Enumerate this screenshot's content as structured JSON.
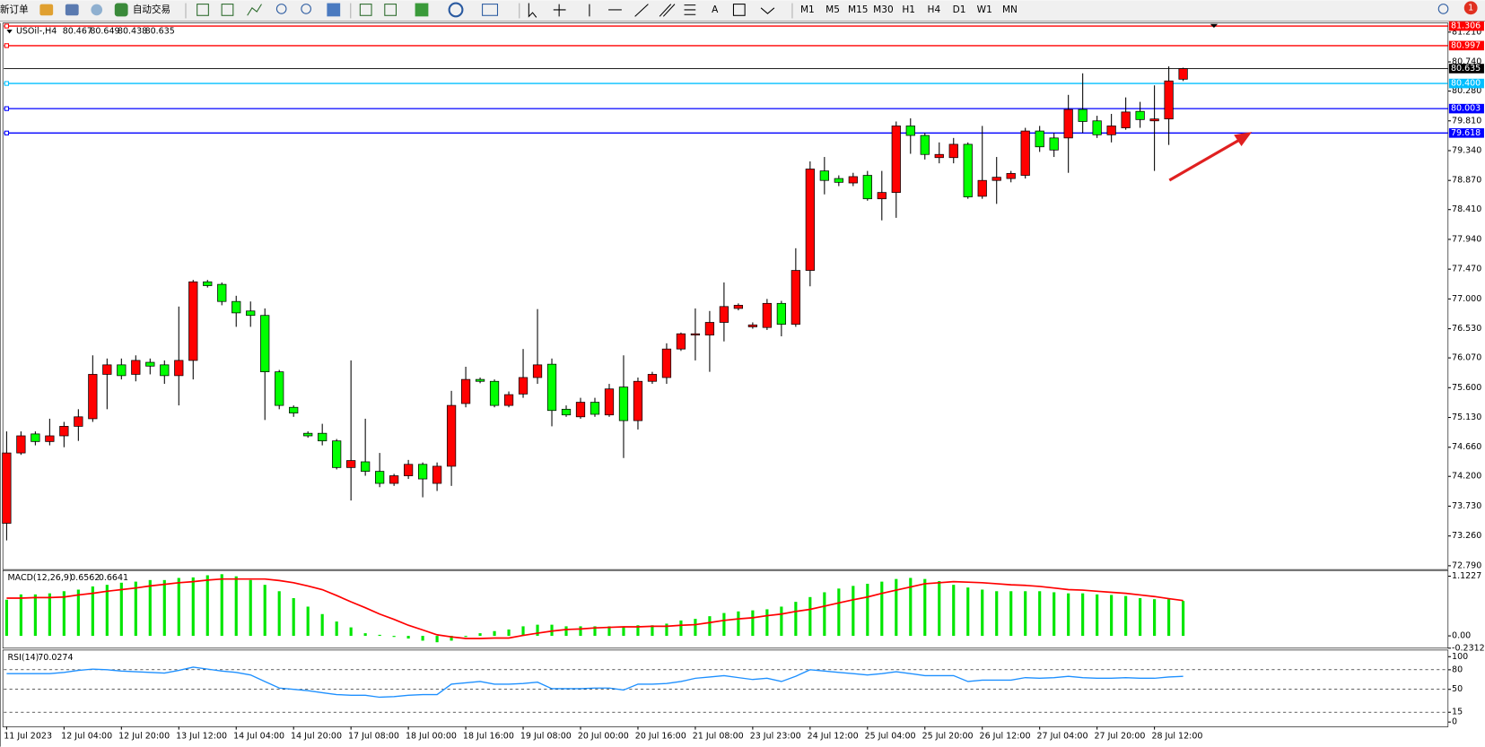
{
  "toolbar": {
    "new_order": "新订单",
    "auto_trading": "自动交易",
    "timeframes": [
      "M1",
      "M5",
      "M15",
      "M30",
      "H1",
      "H4",
      "D1",
      "W1",
      "MN"
    ],
    "badge": "1"
  },
  "chart_data": [
    {
      "type": "candlestick",
      "title": "USOil-,H4",
      "categories": [
        "11 Jul 2023",
        null,
        null,
        null,
        "12 Jul 04:00",
        null,
        null,
        null,
        "12 Jul 20:00",
        null,
        null,
        null,
        "13 Jul 12:00",
        null,
        null,
        null,
        "14 Jul 04:00",
        null,
        null,
        null,
        "14 Jul 20:00",
        null,
        null,
        null,
        "17 Jul 08:00",
        null,
        null,
        null,
        "18 Jul 00:00",
        null,
        null,
        null,
        "18 Jul 16:00",
        null,
        null,
        null,
        "19 Jul 08:00",
        null,
        null,
        null,
        "20 Jul 00:00",
        null,
        null,
        null,
        "20 Jul 16:00",
        null,
        null,
        null,
        "21 Jul 08:00",
        null,
        null,
        null,
        "23 Jul 23:00",
        null,
        null,
        null,
        "24 Jul 12:00",
        null,
        null,
        null,
        "25 Jul 04:00",
        null,
        null,
        null,
        "25 Jul 20:00",
        null,
        null,
        null,
        "26 Jul 12:00",
        null,
        null,
        null,
        "27 Jul 04:00",
        null,
        null,
        null,
        "27 Jul 20:00",
        null,
        null,
        null,
        "28 Jul 12:00",
        null,
        null
      ],
      "open": [
        73.46,
        74.57,
        74.87,
        74.75,
        74.84,
        74.99,
        75.11,
        75.81,
        75.96,
        75.81,
        76.0,
        75.96,
        75.79,
        76.03,
        77.27,
        77.23,
        76.96,
        76.81,
        76.74,
        75.85,
        75.29,
        74.88,
        74.88,
        74.76,
        74.34,
        74.43,
        74.28,
        74.09,
        74.21,
        74.39,
        74.09,
        74.36,
        75.35,
        75.73,
        75.7,
        75.32,
        75.5,
        75.76,
        75.97,
        75.26,
        75.14,
        75.37,
        75.17,
        75.61,
        75.08,
        75.7,
        75.76,
        76.21,
        76.43,
        76.43,
        76.63,
        76.85,
        76.56,
        76.55,
        76.93,
        76.6,
        77.45,
        79.02,
        78.9,
        78.83,
        78.95,
        78.58,
        78.68,
        79.73,
        79.58,
        79.23,
        79.23,
        79.44,
        78.62,
        78.87,
        78.9,
        78.95,
        79.65,
        79.54,
        79.54,
        79.99,
        79.81,
        79.59,
        79.7,
        79.96,
        79.81,
        79.84,
        80.467
      ],
      "high": [
        74.91,
        74.91,
        74.91,
        75.11,
        75.06,
        75.26,
        76.11,
        76.06,
        76.06,
        76.11,
        76.06,
        76.03,
        76.88,
        77.3,
        77.3,
        77.26,
        77.05,
        76.96,
        76.85,
        75.88,
        75.32,
        74.91,
        75.03,
        74.79,
        76.03,
        75.11,
        74.57,
        74.24,
        74.46,
        74.42,
        74.42,
        75.55,
        75.93,
        75.76,
        75.73,
        75.54,
        76.21,
        76.84,
        76.06,
        75.32,
        75.44,
        75.44,
        75.66,
        76.11,
        75.76,
        75.85,
        76.3,
        76.47,
        76.85,
        76.81,
        77.26,
        76.93,
        76.63,
        77.0,
        76.97,
        77.8,
        79.17,
        79.24,
        78.95,
        78.99,
        79.02,
        79.02,
        79.8,
        79.85,
        79.62,
        79.47,
        79.54,
        79.47,
        79.73,
        79.24,
        79.02,
        79.7,
        79.73,
        79.62,
        80.22,
        80.56,
        79.89,
        79.92,
        80.18,
        80.11,
        80.37,
        80.67,
        80.649
      ],
      "low": [
        73.19,
        74.54,
        74.69,
        74.69,
        74.66,
        74.76,
        75.06,
        75.26,
        75.73,
        75.7,
        75.81,
        75.66,
        75.32,
        75.73,
        77.18,
        76.9,
        76.56,
        76.56,
        75.09,
        75.26,
        75.14,
        74.81,
        74.69,
        74.31,
        73.82,
        74.21,
        74.03,
        74.05,
        74.16,
        73.87,
        73.97,
        74.05,
        75.29,
        75.67,
        75.29,
        75.29,
        75.44,
        75.66,
        74.99,
        75.14,
        75.11,
        75.14,
        75.14,
        74.49,
        74.94,
        75.66,
        75.66,
        76.18,
        76.03,
        75.85,
        76.33,
        76.82,
        76.53,
        76.51,
        76.41,
        76.56,
        77.2,
        78.65,
        78.78,
        78.78,
        78.55,
        78.24,
        78.28,
        79.29,
        79.2,
        79.14,
        79.14,
        78.58,
        78.58,
        78.5,
        78.84,
        78.9,
        79.32,
        79.24,
        78.99,
        79.62,
        79.54,
        79.47,
        79.67,
        79.7,
        79.02,
        79.43,
        80.438
      ],
      "close": [
        74.57,
        74.84,
        74.75,
        74.84,
        74.99,
        75.14,
        75.81,
        75.96,
        75.79,
        76.03,
        75.94,
        75.79,
        76.03,
        77.27,
        77.21,
        76.96,
        76.78,
        76.74,
        75.85,
        75.32,
        75.2,
        74.84,
        74.76,
        74.34,
        74.45,
        74.28,
        74.09,
        74.21,
        74.39,
        74.16,
        74.36,
        75.32,
        75.73,
        75.7,
        75.32,
        75.49,
        75.76,
        75.96,
        75.24,
        75.17,
        75.37,
        75.18,
        75.58,
        75.08,
        75.7,
        75.81,
        76.21,
        76.45,
        76.45,
        76.63,
        76.88,
        76.9,
        76.59,
        76.93,
        76.6,
        77.45,
        79.05,
        78.87,
        78.84,
        78.93,
        78.58,
        78.68,
        79.73,
        79.58,
        79.28,
        79.28,
        79.44,
        78.61,
        78.87,
        78.92,
        78.98,
        79.65,
        79.4,
        79.35,
        79.99,
        79.8,
        79.59,
        79.73,
        79.95,
        79.83,
        79.84,
        80.44,
        80.635
      ],
      "up_color": "#ff0000",
      "down_color": "#00ff00",
      "ylim": [
        72.745,
        81.338
      ],
      "yticks": [
        {
          "value": 81.21,
          "label": "81.210"
        },
        {
          "value": 80.74,
          "label": "80.740"
        },
        {
          "value": 80.28,
          "label": "80.280"
        },
        {
          "value": 79.81,
          "label": "79.810"
        },
        {
          "value": 79.34,
          "label": "79.340"
        },
        {
          "value": 78.87,
          "label": "78.870"
        },
        {
          "value": 78.41,
          "label": "78.410"
        },
        {
          "value": 77.94,
          "label": "77.940"
        },
        {
          "value": 77.47,
          "label": "77.470"
        },
        {
          "value": 77.0,
          "label": "77.000"
        },
        {
          "value": 76.53,
          "label": "76.530"
        },
        {
          "value": 76.07,
          "label": "76.070"
        },
        {
          "value": 75.6,
          "label": "75.600"
        },
        {
          "value": 75.13,
          "label": "75.130"
        },
        {
          "value": 74.66,
          "label": "74.660"
        },
        {
          "value": 74.2,
          "label": "74.200"
        },
        {
          "value": 73.73,
          "label": "73.730"
        },
        {
          "value": 73.26,
          "label": "73.260"
        },
        {
          "value": 72.79,
          "label": "72.790"
        }
      ],
      "levels": [
        {
          "value": 81.306,
          "color": "#ff0000"
        },
        {
          "value": 80.997,
          "color": "#ff0000"
        },
        {
          "value": 80.4,
          "label": "80.400",
          "color": "#00bfff"
        },
        {
          "value": 80.003,
          "color": "#0000ff"
        },
        {
          "value": 79.618,
          "color": "#0000ff"
        }
      ],
      "grid": false
    },
    {
      "type": "macd",
      "title": "MACD(12,26,9)",
      "values": [
        0.68,
        0.78,
        0.78,
        0.8,
        0.84,
        0.87,
        0.93,
        0.96,
        1.0,
        1.02,
        1.05,
        1.05,
        1.09,
        1.1,
        1.14,
        1.16,
        1.12,
        1.05,
        0.96,
        0.84,
        0.71,
        0.55,
        0.41,
        0.27,
        0.16,
        0.05,
        0.02,
        -0.02,
        -0.05,
        -0.09,
        -0.12,
        -0.09,
        -0.02,
        0.05,
        0.09,
        0.12,
        0.18,
        0.21,
        0.21,
        0.18,
        0.18,
        0.18,
        0.18,
        0.18,
        0.2,
        0.2,
        0.23,
        0.29,
        0.32,
        0.37,
        0.43,
        0.46,
        0.48,
        0.5,
        0.55,
        0.64,
        0.73,
        0.82,
        0.89,
        0.94,
        0.98,
        1.02,
        1.07,
        1.09,
        1.07,
        1.03,
        0.96,
        0.91,
        0.87,
        0.84,
        0.84,
        0.84,
        0.84,
        0.82,
        0.8,
        0.8,
        0.78,
        0.77,
        0.75,
        0.71,
        0.69,
        0.69,
        0.6562
      ],
      "color": "#00e600",
      "signal_values": [
        0.71,
        0.71,
        0.72,
        0.72,
        0.73,
        0.77,
        0.8,
        0.84,
        0.87,
        0.9,
        0.94,
        0.97,
        1.0,
        1.02,
        1.05,
        1.07,
        1.07,
        1.07,
        1.07,
        1.04,
        1.0,
        0.94,
        0.87,
        0.76,
        0.64,
        0.53,
        0.41,
        0.31,
        0.2,
        0.11,
        0.02,
        -0.02,
        -0.05,
        -0.05,
        -0.04,
        -0.04,
        0.01,
        0.05,
        0.09,
        0.12,
        0.13,
        0.15,
        0.16,
        0.17,
        0.17,
        0.18,
        0.18,
        0.2,
        0.21,
        0.25,
        0.29,
        0.32,
        0.34,
        0.38,
        0.41,
        0.46,
        0.5,
        0.56,
        0.62,
        0.68,
        0.73,
        0.8,
        0.86,
        0.92,
        0.98,
        1.0,
        1.02,
        1.01,
        1.0,
        0.98,
        0.96,
        0.95,
        0.93,
        0.9,
        0.87,
        0.86,
        0.84,
        0.82,
        0.8,
        0.77,
        0.74,
        0.7,
        0.6641
      ],
      "signal_color": "#ff0000",
      "ylim": [
        -0.2312,
        1.1227
      ],
      "yticks": [
        1.1227,
        {
          "value": 0,
          "label": "0.00"
        },
        -0.2312
      ]
    },
    {
      "type": "rsi",
      "title": "RSI(14)",
      "values": [
        74,
        74,
        74,
        74,
        76,
        79,
        81,
        80,
        78,
        77,
        76,
        75,
        79,
        84,
        81,
        78,
        76,
        72,
        62,
        52,
        50,
        48,
        45,
        42,
        41,
        41,
        38,
        39,
        41,
        42,
        42,
        58,
        60,
        62,
        58,
        58,
        59,
        61,
        51,
        51,
        51,
        52,
        52,
        49,
        58,
        58,
        59,
        62,
        67,
        69,
        71,
        68,
        65,
        67,
        62,
        70,
        80,
        78,
        76,
        74,
        72,
        74,
        77,
        74,
        71,
        71,
        71,
        62,
        64,
        64,
        64,
        68,
        67,
        68,
        70,
        68,
        67,
        67,
        68,
        67,
        67,
        69,
        70.0274
      ],
      "color": "#1e90ff",
      "ylim": [
        0,
        100
      ],
      "yticks": [
        100,
        80,
        50,
        15,
        0
      ]
    }
  ]
}
